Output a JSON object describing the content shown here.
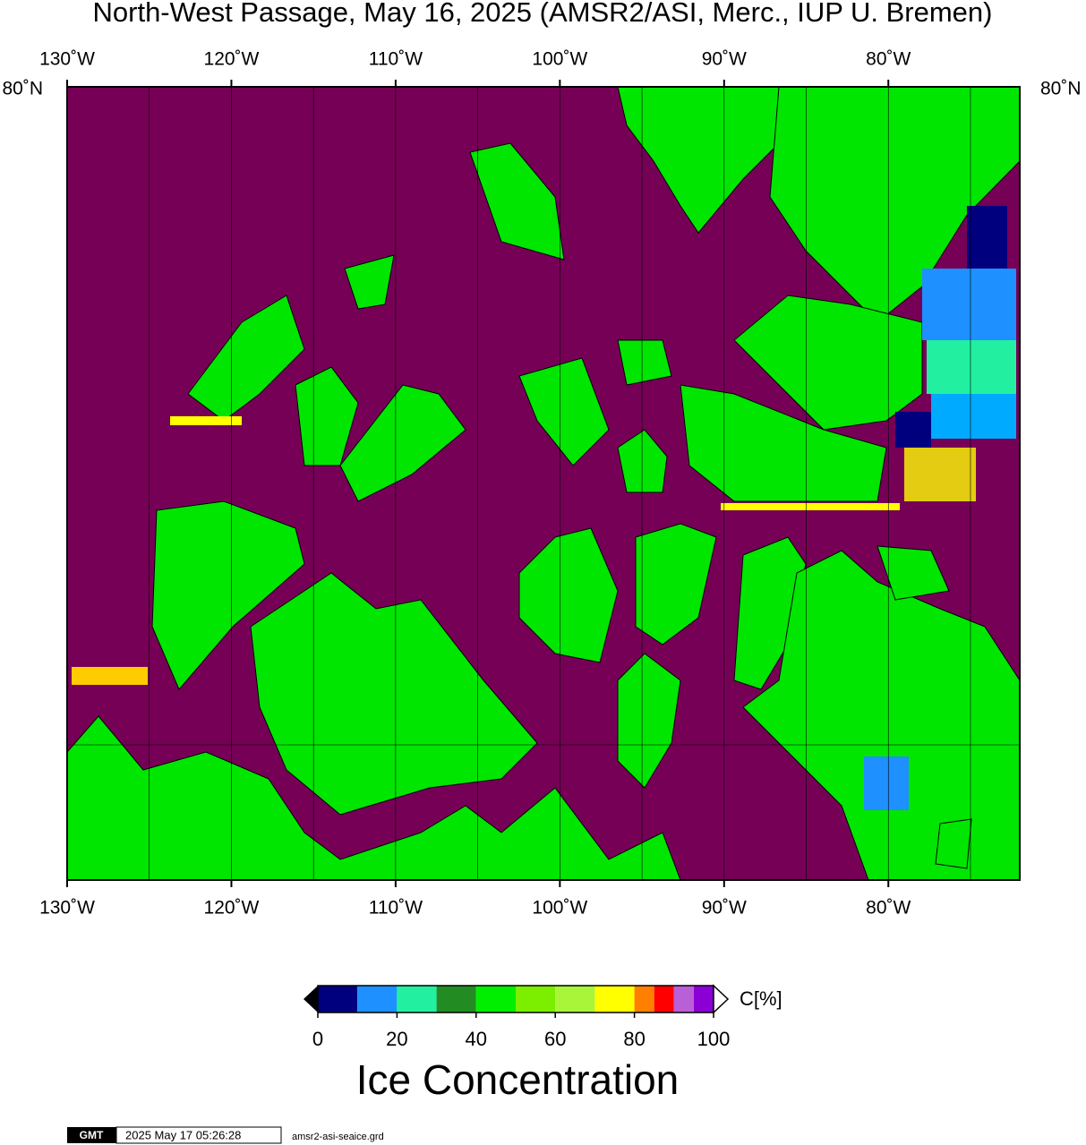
{
  "title": "North-West Passage, May 16, 2025 (AMSR2/ASI, Merc., IUP U. Bremen)",
  "map": {
    "xlim": [
      -130,
      -72
    ],
    "lon_ticks": [
      {
        "value": -130,
        "label": "130˚W"
      },
      {
        "value": -120,
        "label": "120˚W"
      },
      {
        "value": -110,
        "label": "110˚W"
      },
      {
        "value": -100,
        "label": "100˚W"
      },
      {
        "value": -90,
        "label": "90˚W"
      },
      {
        "value": -80,
        "label": "80˚W"
      }
    ],
    "lat_label": "80˚N",
    "grid": [
      -125,
      -115,
      -105,
      -95,
      -85,
      -75
    ]
  },
  "colorbar": {
    "title": "Ice Concentration",
    "unit": "C[%]",
    "lim": [
      0,
      100
    ],
    "ticks": [
      0,
      20,
      40,
      60,
      80,
      100
    ],
    "bounds": [
      0,
      10,
      20,
      30,
      40,
      50,
      60,
      70,
      80,
      85,
      90,
      95,
      100
    ],
    "colors": [
      "#00007f",
      "#1e90ff",
      "#22f0a0",
      "#228b22",
      "#00ee00",
      "#7cee00",
      "#a8f53a",
      "#ffff00",
      "#ff7f00",
      "#ff0000",
      "#b95fd7",
      "#8b00d6"
    ]
  },
  "footer": {
    "logo": "GMT",
    "timestamp": "2025 May 17 05:26:28",
    "file": "amsr2-asi-seaice.grd"
  }
}
